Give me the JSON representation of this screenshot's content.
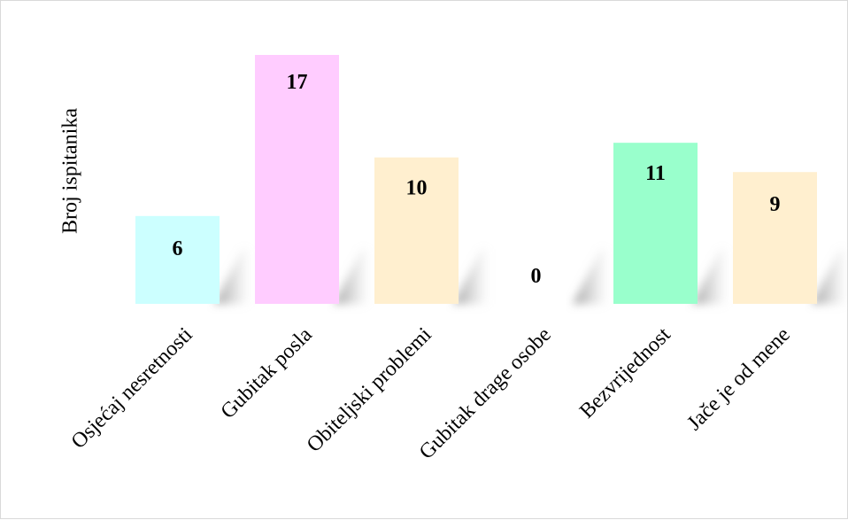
{
  "chart_data": {
    "type": "bar",
    "title": "",
    "xlabel": "",
    "ylabel": "Broj ispitanika",
    "categories": [
      "Osjećaj nesretnosti",
      "Gubitak posla",
      "Obiteljski problemi",
      "Gubitak drage osobe",
      "Bezvrijednost",
      "Jače je od mene"
    ],
    "values": [
      6,
      17,
      10,
      0,
      11,
      9
    ],
    "bar_colors": [
      "#ccffff",
      "#ffccff",
      "#ffefcf",
      "#ffefcf",
      "#99ffcc",
      "#ffefcf"
    ],
    "ylim": [
      0,
      17
    ],
    "grid": false,
    "legend": "none",
    "data_labels": true,
    "bar_shadow": true
  }
}
